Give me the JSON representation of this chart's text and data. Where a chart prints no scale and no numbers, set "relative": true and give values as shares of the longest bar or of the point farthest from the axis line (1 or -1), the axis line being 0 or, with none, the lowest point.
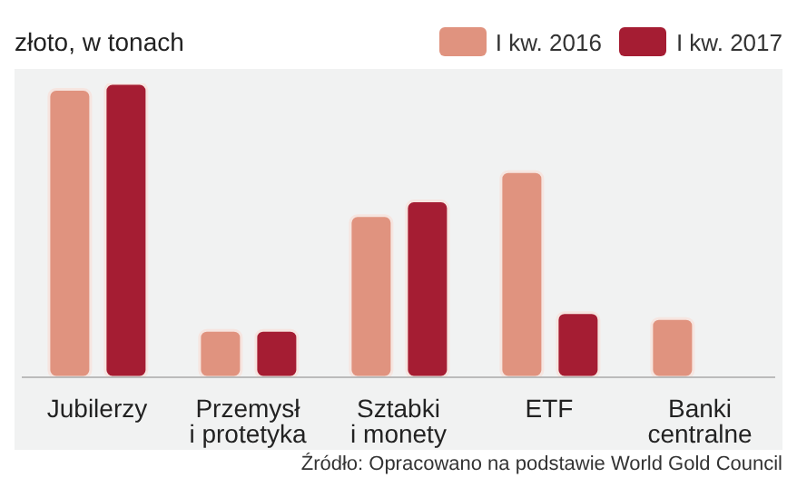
{
  "chart_data": {
    "type": "bar",
    "title": "złoto, w tonach",
    "relative": true,
    "legend": "top right",
    "categories": [
      "Jubilerzy",
      "Przemysł i protetyka",
      "Sztabki i monety",
      "ETF",
      "Banki centralne"
    ],
    "series": [
      {
        "name": "I kw. 2016",
        "color": "#e0937f",
        "values": [
          0.98,
          0.16,
          0.55,
          0.7,
          0.2
        ]
      },
      {
        "name": "I kw. 2017",
        "color": "#a51d33",
        "values": [
          1,
          0.16,
          0.6,
          0.22,
          null
        ]
      }
    ],
    "annotations": [
      "Źródło: Opracowano na podstawie World Gold Council"
    ]
  }
}
